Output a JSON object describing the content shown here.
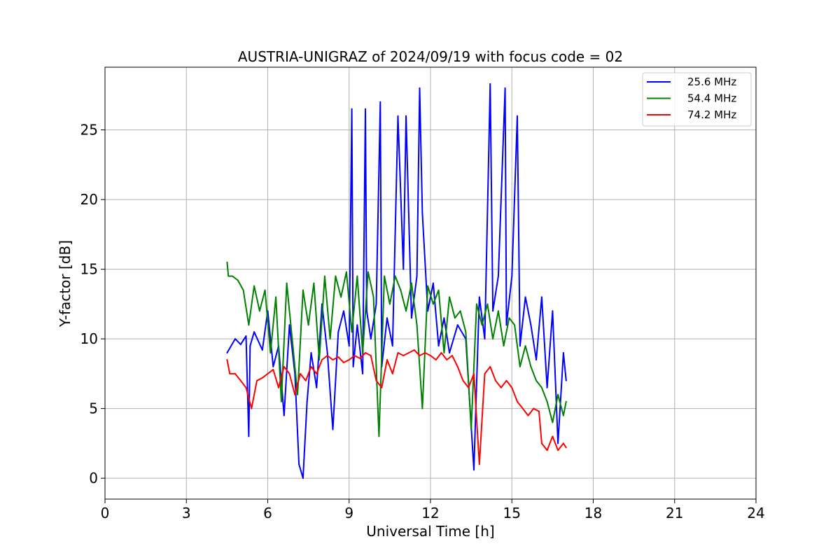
{
  "chart_data": {
    "type": "line",
    "title": "AUSTRIA-UNIGRAZ of 2024/09/19 with focus code = 02",
    "xlabel": "Universal Time [h]",
    "ylabel": "Y-factor [dB]",
    "xlim": [
      0,
      24
    ],
    "ylim": [
      -1.5,
      29.5
    ],
    "xticks": [
      "0",
      "3",
      "6",
      "9",
      "12",
      "15",
      "18",
      "21",
      "24"
    ],
    "yticks": [
      "0",
      "5",
      "10",
      "15",
      "20",
      "25"
    ],
    "grid": true,
    "legend_position": "top-right",
    "series": [
      {
        "name": "25.6 MHz",
        "color": "#0000ff",
        "x": [
          4.5,
          4.8,
          5.0,
          5.2,
          5.3,
          5.35,
          5.5,
          5.8,
          6.0,
          6.2,
          6.4,
          6.6,
          6.8,
          7.0,
          7.15,
          7.3,
          7.45,
          7.6,
          7.8,
          8.0,
          8.2,
          8.4,
          8.6,
          8.8,
          9.0,
          9.1,
          9.15,
          9.3,
          9.5,
          9.6,
          9.65,
          9.8,
          10.0,
          10.15,
          10.2,
          10.4,
          10.6,
          10.8,
          11.0,
          11.1,
          11.3,
          11.5,
          11.6,
          11.7,
          11.9,
          12.1,
          12.3,
          12.5,
          12.7,
          13.0,
          13.3,
          13.6,
          13.8,
          14.0,
          14.2,
          14.3,
          14.5,
          14.75,
          14.8,
          15.0,
          15.2,
          15.3,
          15.5,
          15.7,
          15.9,
          16.1,
          16.3,
          16.5,
          16.7,
          16.9,
          17.0
        ],
        "values": [
          9.0,
          10.0,
          9.6,
          10.2,
          3.0,
          9.5,
          10.5,
          9.2,
          12.0,
          8.0,
          9.5,
          4.5,
          11.0,
          7.5,
          1.0,
          0.0,
          5.5,
          9.0,
          6.5,
          12.5,
          9.0,
          3.5,
          10.5,
          12.0,
          9.5,
          26.5,
          8.0,
          11.0,
          7.5,
          26.5,
          12.0,
          10.0,
          12.5,
          27.0,
          8.0,
          11.5,
          9.5,
          26.0,
          15.0,
          26.0,
          11.5,
          14.5,
          28.0,
          19.0,
          12.0,
          14.0,
          9.5,
          11.5,
          9.0,
          11.0,
          10.0,
          0.6,
          13.0,
          10.0,
          28.3,
          12.0,
          14.5,
          28.0,
          11.0,
          14.5,
          26.0,
          9.5,
          13.0,
          11.0,
          8.5,
          13.0,
          6.5,
          12.0,
          2.5,
          9.0,
          7.0
        ]
      },
      {
        "name": "54.4 MHz",
        "color": "#008000",
        "x": [
          4.5,
          4.55,
          4.7,
          4.9,
          5.1,
          5.3,
          5.5,
          5.7,
          5.9,
          6.1,
          6.3,
          6.5,
          6.7,
          6.9,
          7.1,
          7.3,
          7.5,
          7.7,
          7.9,
          8.1,
          8.3,
          8.5,
          8.7,
          8.9,
          9.1,
          9.3,
          9.5,
          9.7,
          9.9,
          10.1,
          10.3,
          10.5,
          10.7,
          10.9,
          11.1,
          11.3,
          11.5,
          11.7,
          11.9,
          12.1,
          12.3,
          12.5,
          12.7,
          12.9,
          13.1,
          13.3,
          13.5,
          13.7,
          13.9,
          14.1,
          14.3,
          14.5,
          14.7,
          14.9,
          15.1,
          15.3,
          15.5,
          15.7,
          15.9,
          16.1,
          16.3,
          16.5,
          16.7,
          16.9,
          17.0
        ],
        "values": [
          15.5,
          14.5,
          14.5,
          14.2,
          13.5,
          11.0,
          13.8,
          12.0,
          13.5,
          9.0,
          13.0,
          5.5,
          14.0,
          10.0,
          6.0,
          13.5,
          11.0,
          14.0,
          8.5,
          14.5,
          10.0,
          14.5,
          13.0,
          14.8,
          10.5,
          14.5,
          9.0,
          14.8,
          13.0,
          3.0,
          14.5,
          12.5,
          14.5,
          13.5,
          12.0,
          14.0,
          11.0,
          5.0,
          13.8,
          12.5,
          13.5,
          9.0,
          13.0,
          11.5,
          12.0,
          10.5,
          3.5,
          12.5,
          11.0,
          12.5,
          10.0,
          12.0,
          9.5,
          11.5,
          11.0,
          8.0,
          9.5,
          8.0,
          7.0,
          6.5,
          5.5,
          4.0,
          6.0,
          4.5,
          5.5
        ]
      },
      {
        "name": "74.2 MHz",
        "color": "#ff0000",
        "x": [
          4.5,
          4.6,
          4.8,
          5.0,
          5.2,
          5.4,
          5.6,
          5.8,
          6.0,
          6.2,
          6.4,
          6.6,
          6.8,
          7.0,
          7.2,
          7.4,
          7.6,
          7.8,
          8.0,
          8.2,
          8.4,
          8.6,
          8.8,
          9.0,
          9.2,
          9.4,
          9.6,
          9.8,
          10.0,
          10.2,
          10.4,
          10.6,
          10.8,
          11.0,
          11.2,
          11.4,
          11.6,
          11.8,
          12.0,
          12.2,
          12.4,
          12.6,
          12.8,
          13.0,
          13.2,
          13.4,
          13.6,
          13.8,
          14.0,
          14.2,
          14.4,
          14.6,
          14.8,
          15.0,
          15.2,
          15.4,
          15.6,
          15.8,
          16.0,
          16.1,
          16.3,
          16.5,
          16.7,
          16.9,
          17.0
        ],
        "values": [
          8.5,
          7.5,
          7.5,
          7.0,
          6.5,
          5.0,
          7.0,
          7.2,
          7.5,
          7.8,
          6.5,
          8.0,
          7.5,
          6.0,
          7.5,
          7.0,
          8.0,
          7.5,
          8.5,
          8.8,
          8.5,
          8.7,
          8.3,
          8.5,
          8.8,
          8.6,
          9.0,
          8.8,
          7.0,
          6.5,
          8.5,
          7.5,
          9.0,
          8.8,
          9.0,
          9.2,
          8.8,
          9.0,
          8.8,
          8.5,
          9.0,
          8.5,
          8.8,
          8.0,
          7.0,
          6.5,
          7.5,
          1.0,
          7.5,
          8.0,
          7.0,
          6.5,
          7.0,
          6.5,
          5.5,
          5.0,
          4.5,
          5.0,
          4.8,
          2.5,
          2.0,
          3.0,
          2.0,
          2.5,
          2.2
        ]
      }
    ]
  }
}
